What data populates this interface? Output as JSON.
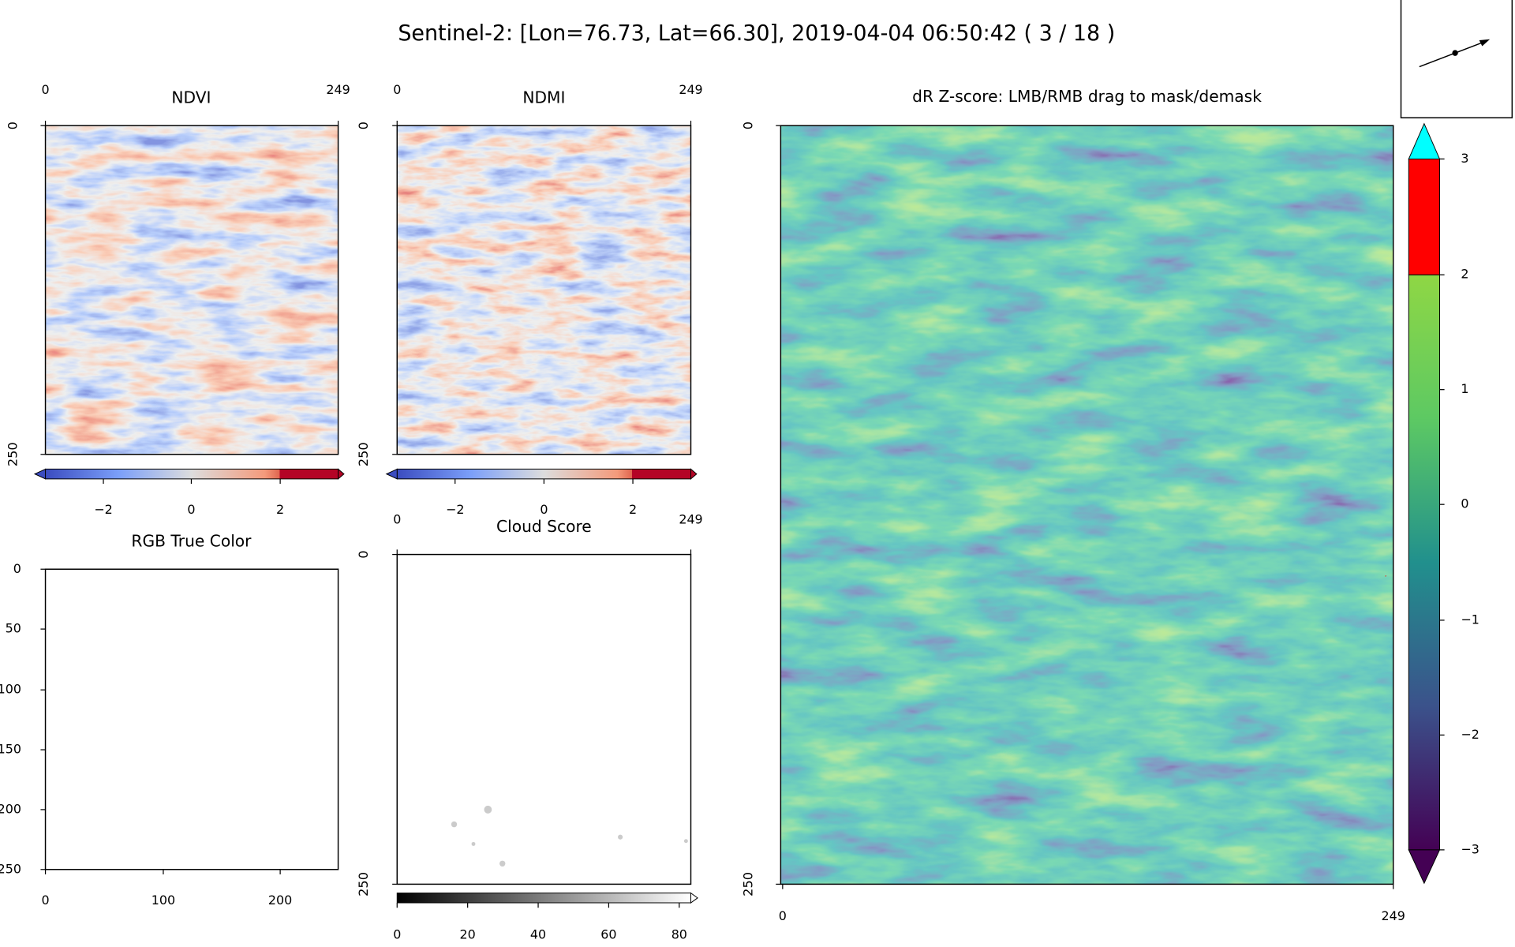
{
  "title": "Sentinel-2: [Lon=76.73, Lat=66.30], 2019-04-04 06:50:42 ( 3 / 18 )",
  "panels": {
    "ndvi": {
      "title": "NDVI",
      "xticks": [
        "0",
        "249"
      ],
      "yticks": [
        "0",
        "250"
      ],
      "colorbar_ticks": [
        "−2",
        "0",
        "2"
      ]
    },
    "ndmi": {
      "title": "NDMI",
      "xticks": [
        "0",
        "249"
      ],
      "yticks": [
        "0",
        "250"
      ],
      "colorbar_ticks": [
        "−2",
        "0",
        "2"
      ]
    },
    "rgb": {
      "title": "RGB True Color",
      "xticks": [
        "0",
        "100",
        "200"
      ],
      "yticks": [
        "0",
        "50",
        "100",
        "150",
        "200",
        "250"
      ]
    },
    "cloud": {
      "title": "Cloud Score",
      "xticks": [
        "0",
        "249"
      ],
      "yticks": [
        "0",
        "250"
      ],
      "colorbar_ticks": [
        "0",
        "20",
        "40",
        "60",
        "80"
      ]
    },
    "dr": {
      "title": "dR Z-score: LMB/RMB drag to mask/demask",
      "xticks": [
        "0",
        "249"
      ],
      "yticks": [
        "0",
        "250"
      ],
      "colorbar_ticks": [
        "3",
        "2",
        "1",
        "0",
        "−1",
        "−2",
        "−3"
      ]
    }
  }
}
